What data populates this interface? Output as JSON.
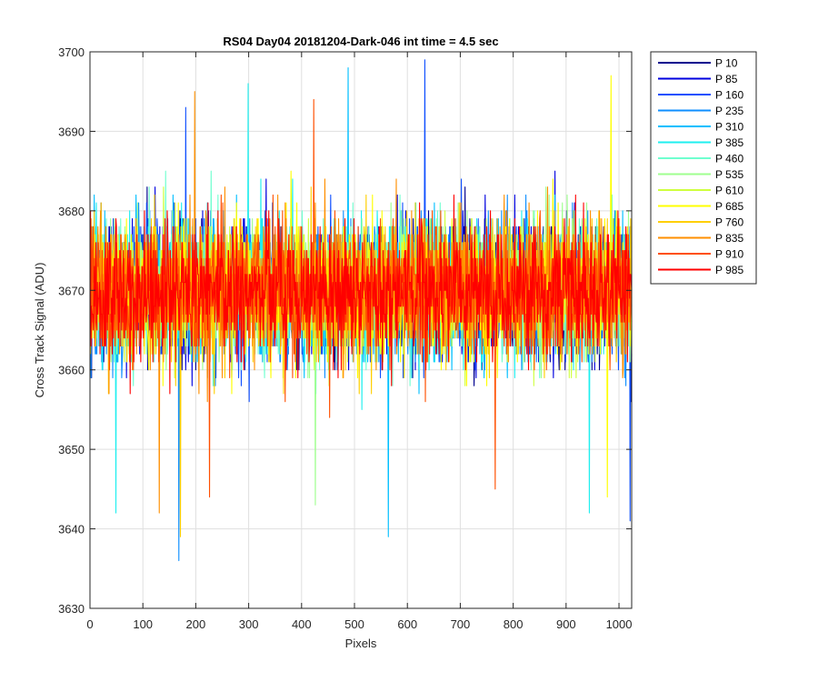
{
  "chart_data": {
    "type": "line",
    "title": "RS04 Day04 20181204-Dark-046 int time = 4.5 sec",
    "xlabel": "Pixels",
    "ylabel": "Cross Track Signal (ADU)",
    "xlim": [
      0,
      1024
    ],
    "ylim": [
      3630,
      3700
    ],
    "xticks": [
      0,
      100,
      200,
      300,
      400,
      500,
      600,
      700,
      800,
      900,
      1000
    ],
    "yticks": [
      3630,
      3640,
      3650,
      3660,
      3670,
      3680,
      3690,
      3700
    ],
    "grid": true,
    "legend_position": "outside-top-right",
    "n_points_per_series": 1024,
    "series_summary": {
      "center": 3670,
      "typical_spread": 8,
      "observed_min": 3636,
      "observed_max": 3699
    },
    "series": [
      {
        "name": "P 10",
        "color": "#00008f"
      },
      {
        "name": "P 85",
        "color": "#0000df"
      },
      {
        "name": "P 160",
        "color": "#0f4fff"
      },
      {
        "name": "P 235",
        "color": "#0f8fff"
      },
      {
        "name": "P 310",
        "color": "#00bfff"
      },
      {
        "name": "P 385",
        "color": "#1fefef"
      },
      {
        "name": "P 460",
        "color": "#6fffcf"
      },
      {
        "name": "P 535",
        "color": "#9fff8f"
      },
      {
        "name": "P 610",
        "color": "#cfff3f"
      },
      {
        "name": "P 685",
        "color": "#ffff00"
      },
      {
        "name": "P 760",
        "color": "#ffcf00"
      },
      {
        "name": "P 835",
        "color": "#ff8f00"
      },
      {
        "name": "P 910",
        "color": "#ff4f00"
      },
      {
        "name": "P 985",
        "color": "#ff0000"
      }
    ],
    "extremes": [
      {
        "series": "P 160",
        "x": 632,
        "y": 3699
      },
      {
        "series": "P 310",
        "x": 487,
        "y": 3698
      },
      {
        "series": "P 685",
        "x": 984,
        "y": 3697
      },
      {
        "series": "P 385",
        "x": 298,
        "y": 3696
      },
      {
        "series": "P 835",
        "x": 197,
        "y": 3695
      },
      {
        "series": "P 910",
        "x": 422,
        "y": 3694
      },
      {
        "series": "P 160",
        "x": 180,
        "y": 3693
      },
      {
        "series": "P 160",
        "x": 1020,
        "y": 3641
      },
      {
        "series": "P 235",
        "x": 167,
        "y": 3636
      },
      {
        "series": "P 310",
        "x": 563,
        "y": 3639
      },
      {
        "series": "P 385",
        "x": 48,
        "y": 3642
      },
      {
        "series": "P 385",
        "x": 943,
        "y": 3642
      },
      {
        "series": "P 760",
        "x": 170,
        "y": 3639
      },
      {
        "series": "P 835",
        "x": 130,
        "y": 3642
      },
      {
        "series": "P 910",
        "x": 225,
        "y": 3644
      },
      {
        "series": "P 910",
        "x": 765,
        "y": 3645
      },
      {
        "series": "P 535",
        "x": 425,
        "y": 3643
      },
      {
        "series": "P 685",
        "x": 977,
        "y": 3644
      }
    ]
  }
}
